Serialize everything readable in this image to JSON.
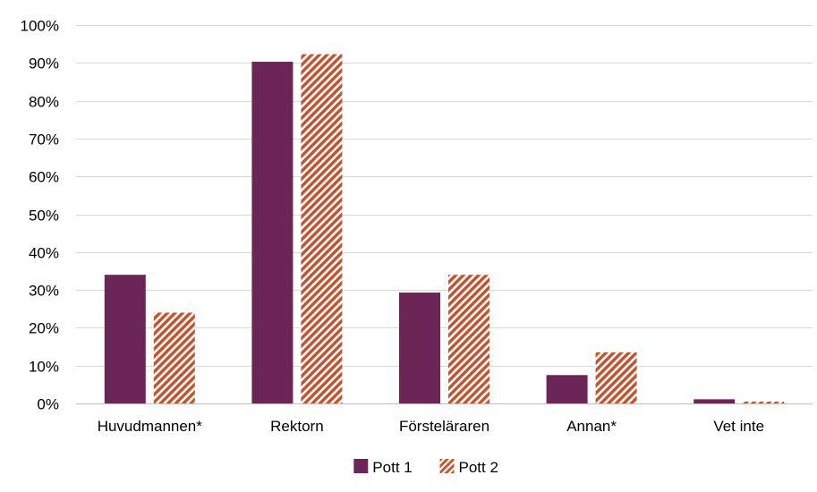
{
  "chart_data": {
    "type": "bar",
    "title": "",
    "xlabel": "",
    "ylabel": "",
    "categories": [
      "Huvudmannen*",
      "Rektorn",
      "Försteläraren",
      "Annan*",
      "Vet inte"
    ],
    "series": [
      {
        "name": "Pott 1",
        "values": [
          34,
          90.3,
          29.3,
          7.5,
          1.1
        ],
        "color": "#6b2657",
        "pattern": "solid"
      },
      {
        "name": "Pott 2",
        "values": [
          24,
          92.3,
          34,
          13.5,
          0.5
        ],
        "color": "#c8502a",
        "pattern": "diagonal-hatch"
      }
    ],
    "ylim": [
      0,
      100
    ],
    "yticks": [
      0,
      10,
      20,
      30,
      40,
      50,
      60,
      70,
      80,
      90,
      100
    ],
    "ytick_suffix": "%",
    "grid": true,
    "legend_position": "bottom"
  }
}
